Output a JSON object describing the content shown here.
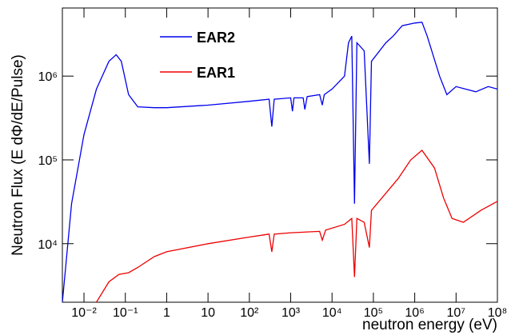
{
  "chart_data": {
    "type": "line",
    "xscale": "log",
    "yscale": "log",
    "x_label": "neutron energy (eV)",
    "y_label": "Neutron Flux (E dΦ/dE/Pulse)",
    "xlim": [
      0.003,
      100000000
    ],
    "ylim": [
      2000,
      6500000
    ],
    "xticks": [
      {
        "value": 0.01,
        "label": "10⁻²"
      },
      {
        "value": 0.1,
        "label": "10⁻¹"
      },
      1,
      10,
      {
        "value": 100,
        "label": "10²"
      },
      {
        "value": 1000,
        "label": "10³"
      },
      {
        "value": 10000,
        "label": "10⁴"
      },
      {
        "value": 100000,
        "label": "10⁵"
      },
      {
        "value": 1000000,
        "label": "10⁶"
      },
      {
        "value": 10000000,
        "label": "10⁷"
      },
      {
        "value": 100000000,
        "label": "10⁸"
      }
    ],
    "yticks": [
      {
        "value": 10000,
        "label": "10⁴"
      },
      {
        "value": 100000,
        "label": "10⁵"
      },
      {
        "value": 1000000,
        "label": "10⁶"
      }
    ],
    "legend": "top-center",
    "series": [
      {
        "name": "EAR2",
        "color": "#0000ee",
        "x": [
          0.003,
          0.005,
          0.01,
          0.02,
          0.04,
          0.06,
          0.08,
          0.12,
          0.2,
          0.5,
          1,
          10,
          100,
          300,
          350,
          400,
          1000,
          1100,
          1200,
          2000,
          2200,
          2500,
          5000,
          5800,
          6500,
          10000,
          20000,
          25000,
          30000,
          35000,
          40000,
          60000,
          80000,
          90000,
          200000,
          300000,
          500000,
          1000000,
          1500000,
          2000000,
          4000000,
          6000000,
          10000000,
          30000000,
          60000000,
          100000000
        ],
        "values": [
          2000,
          30000,
          200000,
          700000,
          1500000,
          1800000,
          1500000,
          600000,
          430000,
          420000,
          420000,
          450000,
          500000,
          530000,
          250000,
          530000,
          550000,
          380000,
          550000,
          550000,
          400000,
          570000,
          600000,
          450000,
          600000,
          700000,
          1000000,
          2500000,
          3000000,
          30000,
          2500000,
          2000000,
          90000,
          1500000,
          2500000,
          3000000,
          4000000,
          4300000,
          4400000,
          3000000,
          1000000,
          600000,
          750000,
          650000,
          750000,
          700000
        ]
      },
      {
        "name": "EAR1",
        "color": "#ee0000",
        "x": [
          0.02,
          0.04,
          0.07,
          0.12,
          0.2,
          0.5,
          1,
          10,
          100,
          300,
          350,
          400,
          1000,
          5000,
          5800,
          7000,
          20000,
          30000,
          35000,
          40000,
          60000,
          80000,
          90000,
          200000,
          400000,
          800000,
          1500000,
          3000000,
          5000000,
          8000000,
          15000000,
          40000000,
          100000000
        ],
        "values": [
          2000,
          3500,
          4300,
          4500,
          5200,
          7000,
          8000,
          10000,
          12000,
          13000,
          8000,
          13000,
          13500,
          14000,
          11000,
          14500,
          17000,
          20000,
          4000,
          20000,
          18000,
          9000,
          25000,
          40000,
          60000,
          100000,
          130000,
          80000,
          35000,
          20000,
          18000,
          25000,
          32000
        ]
      }
    ]
  }
}
